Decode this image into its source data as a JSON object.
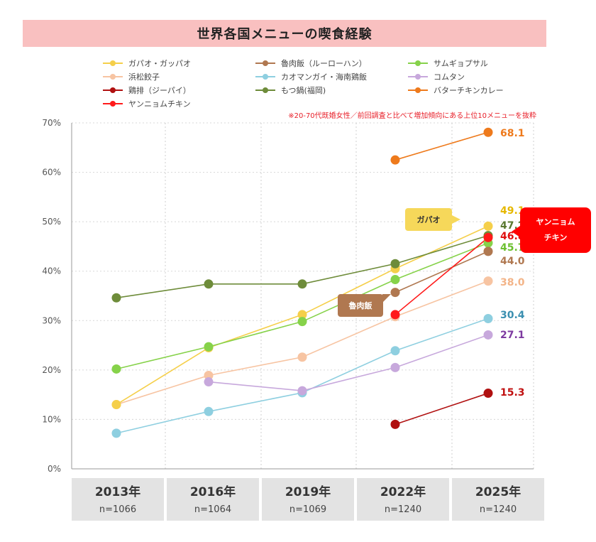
{
  "title": "世界各国メニューの喫食経験",
  "note": "※20-70代既婚女性／前回調査と比べて増加傾向にある上位10メニューを抜粋",
  "colors": {
    "title_bg": "#f9c0c0",
    "note": "#e8202a",
    "category_bg": "#e3e3e3"
  },
  "callouts": {
    "gapao": "ガパオ",
    "lurou": "魯肉飯",
    "yangnyeom_line1": "ヤンニョム",
    "yangnyeom_line2": "チキン"
  },
  "x_categories": [
    {
      "year": "2013年",
      "n": "n=1066"
    },
    {
      "year": "2016年",
      "n": "n=1064"
    },
    {
      "year": "2019年",
      "n": "n=1069"
    },
    {
      "year": "2022年",
      "n": "n=1240"
    },
    {
      "year": "2025年",
      "n": "n=1240"
    }
  ],
  "chart_data": {
    "type": "line",
    "title": "世界各国メニューの喫食経験",
    "categories": [
      "2013年",
      "2016年",
      "2019年",
      "2022年",
      "2025年"
    ],
    "ylim": [
      0,
      70
    ],
    "yticks": [
      "0%",
      "10%",
      "20%",
      "30%",
      "40%",
      "50%",
      "60%",
      "70%"
    ],
    "y_unit": "%",
    "grid": true,
    "legend_position": "top",
    "series": [
      {
        "name": "ガパオ・ガッパオ",
        "color": "#f5cf4a",
        "label_color": "#e6b800",
        "values": [
          13,
          24.5,
          31.2,
          40.5,
          49.1
        ],
        "last_label": "49.1"
      },
      {
        "name": "魯肉飯（ルーローハン）",
        "color": "#b07850",
        "label_color": "#b07850",
        "values": [
          null,
          null,
          null,
          35.7,
          44.0
        ],
        "last_label": "44.0"
      },
      {
        "name": "サムギョプサル",
        "color": "#86d24a",
        "label_color": "#6cc030",
        "values": [
          20.2,
          24.7,
          29.8,
          38.3,
          45.7
        ],
        "last_label": "45.7"
      },
      {
        "name": "浜松餃子",
        "color": "#f7c4a2",
        "label_color": "#f3b488",
        "values": [
          13,
          18.9,
          22.6,
          30.8,
          38.0
        ],
        "last_label": "38.0"
      },
      {
        "name": "カオマンガイ・海南鶏飯",
        "color": "#8ecfe0",
        "label_color": "#3a8fb0",
        "values": [
          7.2,
          11.6,
          15.4,
          23.9,
          30.4
        ],
        "last_label": "30.4"
      },
      {
        "name": "コムタン",
        "color": "#c7a8dc",
        "label_color": "#7d3aa0",
        "values": [
          null,
          17.6,
          15.8,
          20.5,
          27.1
        ],
        "last_label": "27.1"
      },
      {
        "name": "鶏排（ジーパイ）",
        "color": "#b01010",
        "label_color": "#c01010",
        "values": [
          null,
          null,
          null,
          9,
          15.3
        ],
        "last_label": "15.3"
      },
      {
        "name": "もつ鍋(福岡)",
        "color": "#6e8c3a",
        "label_color": "#5a7830",
        "values": [
          34.6,
          37.4,
          37.4,
          41.5,
          47.2
        ],
        "last_label": "47.2"
      },
      {
        "name": "バターチキンカレー",
        "color": "#ee7a1c",
        "label_color": "#ee7a1c",
        "values": [
          null,
          null,
          null,
          62.5,
          68.1
        ],
        "last_label": "68.1"
      },
      {
        "name": "ヤンニョムチキン",
        "color": "#ff1a1a",
        "label_color": "#e01010",
        "values": [
          null,
          null,
          null,
          31.2,
          46.8
        ],
        "last_label": "46.8"
      }
    ]
  }
}
